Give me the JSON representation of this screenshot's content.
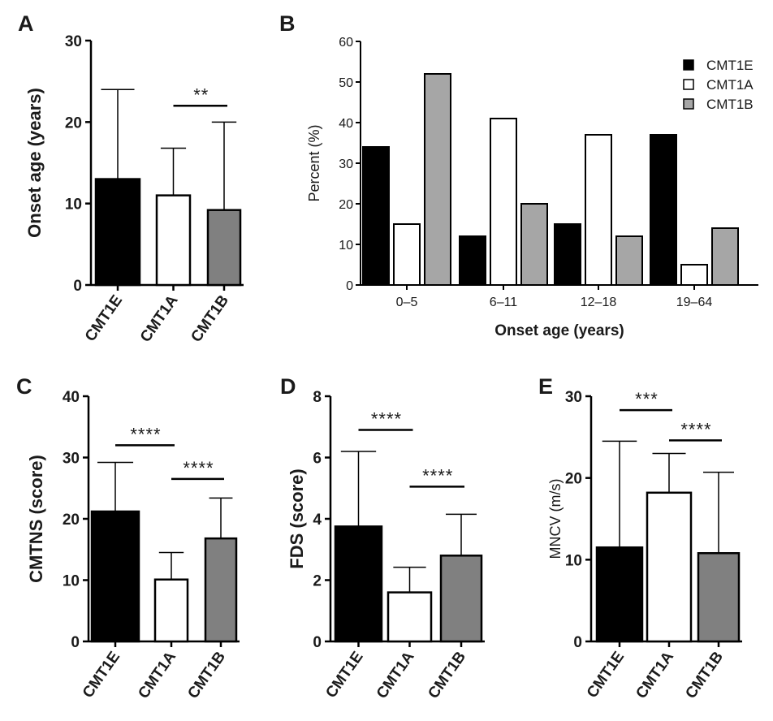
{
  "chart_data": [
    {
      "panel": "A",
      "type": "bar",
      "categories": [
        "CMT1E",
        "CMT1A",
        "CMT1B"
      ],
      "values": [
        13,
        11,
        9.2
      ],
      "error_upper": [
        24,
        16.8,
        20
      ],
      "colors": [
        "#000000",
        "#ffffff",
        "#808080"
      ],
      "ylabel": "Onset age (years)",
      "ylim": [
        0,
        30
      ],
      "yticks": [
        "0",
        "10",
        "20",
        "30"
      ],
      "significance": [
        {
          "from": 1,
          "to": 2,
          "level": 22,
          "label": "**"
        }
      ]
    },
    {
      "panel": "B",
      "type": "bar",
      "categories": [
        "0–5",
        "6–11",
        "12–18",
        "19–64"
      ],
      "series": [
        {
          "name": "CMT1E",
          "color": "#000000",
          "values": [
            34,
            12,
            15,
            37
          ]
        },
        {
          "name": "CMT1A",
          "color": "#ffffff",
          "values": [
            15,
            41,
            37,
            5
          ]
        },
        {
          "name": "CMT1B",
          "color": "#a6a6a6",
          "values": [
            52,
            20,
            12,
            14
          ]
        }
      ],
      "xlabel": "Onset age (years)",
      "ylabel": "Percent (%)",
      "ylim": [
        0,
        60
      ],
      "yticks": [
        "0",
        "10",
        "20",
        "30",
        "40",
        "50",
        "60"
      ],
      "legend": "top-right"
    },
    {
      "panel": "C",
      "type": "bar",
      "categories": [
        "CMT1E",
        "CMT1A",
        "CMT1B"
      ],
      "values": [
        21.2,
        10.1,
        16.8
      ],
      "error_upper": [
        29.2,
        14.5,
        23.4
      ],
      "colors": [
        "#000000",
        "#ffffff",
        "#808080"
      ],
      "ylabel": "CMTNS (score)",
      "ylim": [
        0,
        40
      ],
      "yticks": [
        "0",
        "10",
        "20",
        "30",
        "40"
      ],
      "significance": [
        {
          "from": 0,
          "to": 1,
          "level": 32,
          "label": "****"
        },
        {
          "from": 1,
          "to": 2,
          "level": 26.5,
          "label": "****"
        }
      ]
    },
    {
      "panel": "D",
      "type": "bar",
      "categories": [
        "CMT1E",
        "CMT1A",
        "CMT1B"
      ],
      "values": [
        3.75,
        1.6,
        2.8
      ],
      "error_upper": [
        6.2,
        2.42,
        4.15
      ],
      "colors": [
        "#000000",
        "#ffffff",
        "#808080"
      ],
      "ylabel": "FDS (score)",
      "ylim": [
        0,
        8
      ],
      "yticks": [
        "0",
        "2",
        "4",
        "6",
        "8"
      ],
      "significance": [
        {
          "from": 0,
          "to": 1,
          "level": 6.9,
          "label": "****"
        },
        {
          "from": 1,
          "to": 2,
          "level": 5.05,
          "label": "****"
        }
      ]
    },
    {
      "panel": "E",
      "type": "bar",
      "categories": [
        "CMT1E",
        "CMT1A",
        "CMT1B"
      ],
      "values": [
        11.5,
        18.2,
        10.8
      ],
      "error_upper": [
        24.5,
        23,
        20.7
      ],
      "colors": [
        "#000000",
        "#ffffff",
        "#808080"
      ],
      "ylabel": "MNCV (m/s)",
      "ylim": [
        0,
        30
      ],
      "yticks": [
        "0",
        "10",
        "20",
        "30"
      ],
      "significance": [
        {
          "from": 0,
          "to": 1,
          "level": 28.3,
          "label": "***"
        },
        {
          "from": 1,
          "to": 2,
          "level": 24.6,
          "label": "****"
        }
      ]
    }
  ]
}
